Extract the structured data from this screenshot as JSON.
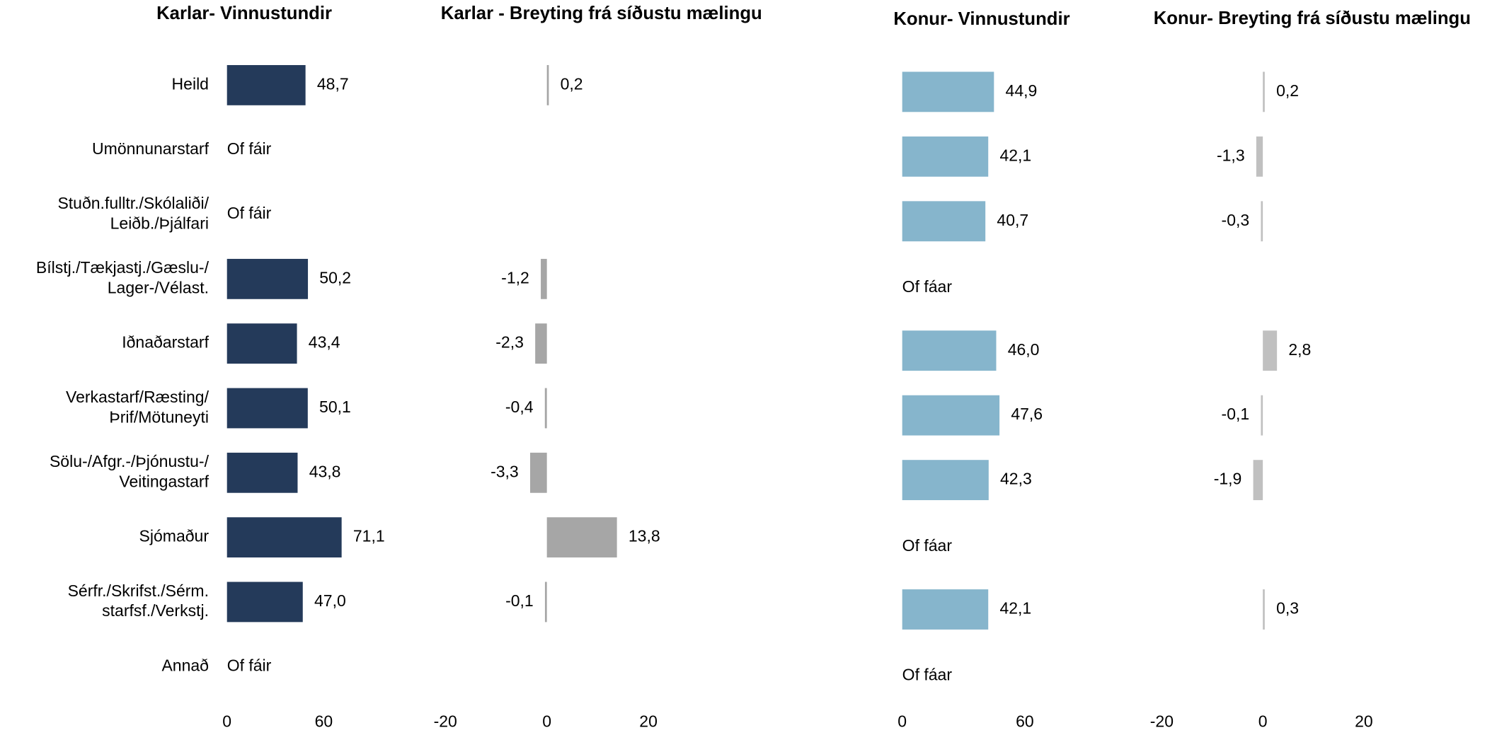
{
  "chart_data": [
    {
      "type": "bar",
      "orientation": "horizontal",
      "title": "Karlar- Vinnustundir",
      "categories": [
        [
          "Heild"
        ],
        [
          "Umönnunarstarf"
        ],
        [
          "Stuðn.fulltr./Skólaliði/",
          "Leiðb./Þjálfari"
        ],
        [
          "Bílstj./Tækjastj./Gæslu-/",
          "Lager-/Vélast."
        ],
        [
          "Iðnaðarstarf"
        ],
        [
          "Verkastarf/Ræsting/",
          "Þrif/Mötuneyti"
        ],
        [
          "Sölu-/Afgr.-/Þjónustu-/",
          "Veitingastarf"
        ],
        [
          "Sjómaður"
        ],
        [
          "Sérfr./Skrifst./Sérm.",
          "starfsf./Verkstj."
        ],
        [
          "Annað"
        ]
      ],
      "values": [
        48.7,
        null,
        null,
        50.2,
        43.4,
        50.1,
        43.8,
        71.1,
        47.0,
        null
      ],
      "value_labels": [
        "48,7",
        "Of fáir",
        "Of fáir",
        "50,2",
        "43,4",
        "50,1",
        "43,8",
        "71,1",
        "47,0",
        "Of fáir"
      ],
      "color": "#243a5a",
      "xlim": [
        0,
        120
      ],
      "xticks": [
        0,
        60
      ]
    },
    {
      "type": "bar",
      "orientation": "horizontal",
      "title": "Karlar - Breyting frá síðustu mælingu",
      "values": [
        0.2,
        null,
        null,
        -1.2,
        -2.3,
        -0.4,
        -3.3,
        13.8,
        -0.1,
        null
      ],
      "value_labels": [
        "0,2",
        null,
        null,
        "-1,2",
        "-2,3",
        "-0,4",
        "-3,3",
        "13,8",
        "-0,1",
        null
      ],
      "color": "#a6a6a6",
      "xlim": [
        -20,
        20
      ],
      "xticks": [
        -20,
        0,
        20
      ]
    },
    {
      "type": "bar",
      "orientation": "horizontal",
      "title": "Konur- Vinnustundir",
      "values": [
        44.9,
        42.1,
        40.7,
        null,
        46.0,
        47.6,
        42.3,
        null,
        42.1,
        null
      ],
      "value_labels": [
        "44,9",
        "42,1",
        "40,7",
        "Of fáar",
        "46,0",
        "47,6",
        "42,3",
        "Of fáar",
        "42,1",
        "Of fáar"
      ],
      "color": "#86b5cc",
      "xlim": [
        0,
        120
      ],
      "xticks": [
        0,
        60
      ]
    },
    {
      "type": "bar",
      "orientation": "horizontal",
      "title": "Konur- Breyting frá síðustu mælingu",
      "values": [
        0.2,
        -1.3,
        -0.3,
        null,
        2.8,
        -0.1,
        -1.9,
        null,
        0.3,
        null
      ],
      "value_labels": [
        "0,2",
        "-1,3",
        "-0,3",
        null,
        "2,8",
        "-0,1",
        "-1,9",
        null,
        "0,3",
        null
      ],
      "color": "#c0c0c0",
      "xlim": [
        -20,
        20
      ],
      "xticks": [
        -20,
        0,
        20
      ]
    }
  ]
}
